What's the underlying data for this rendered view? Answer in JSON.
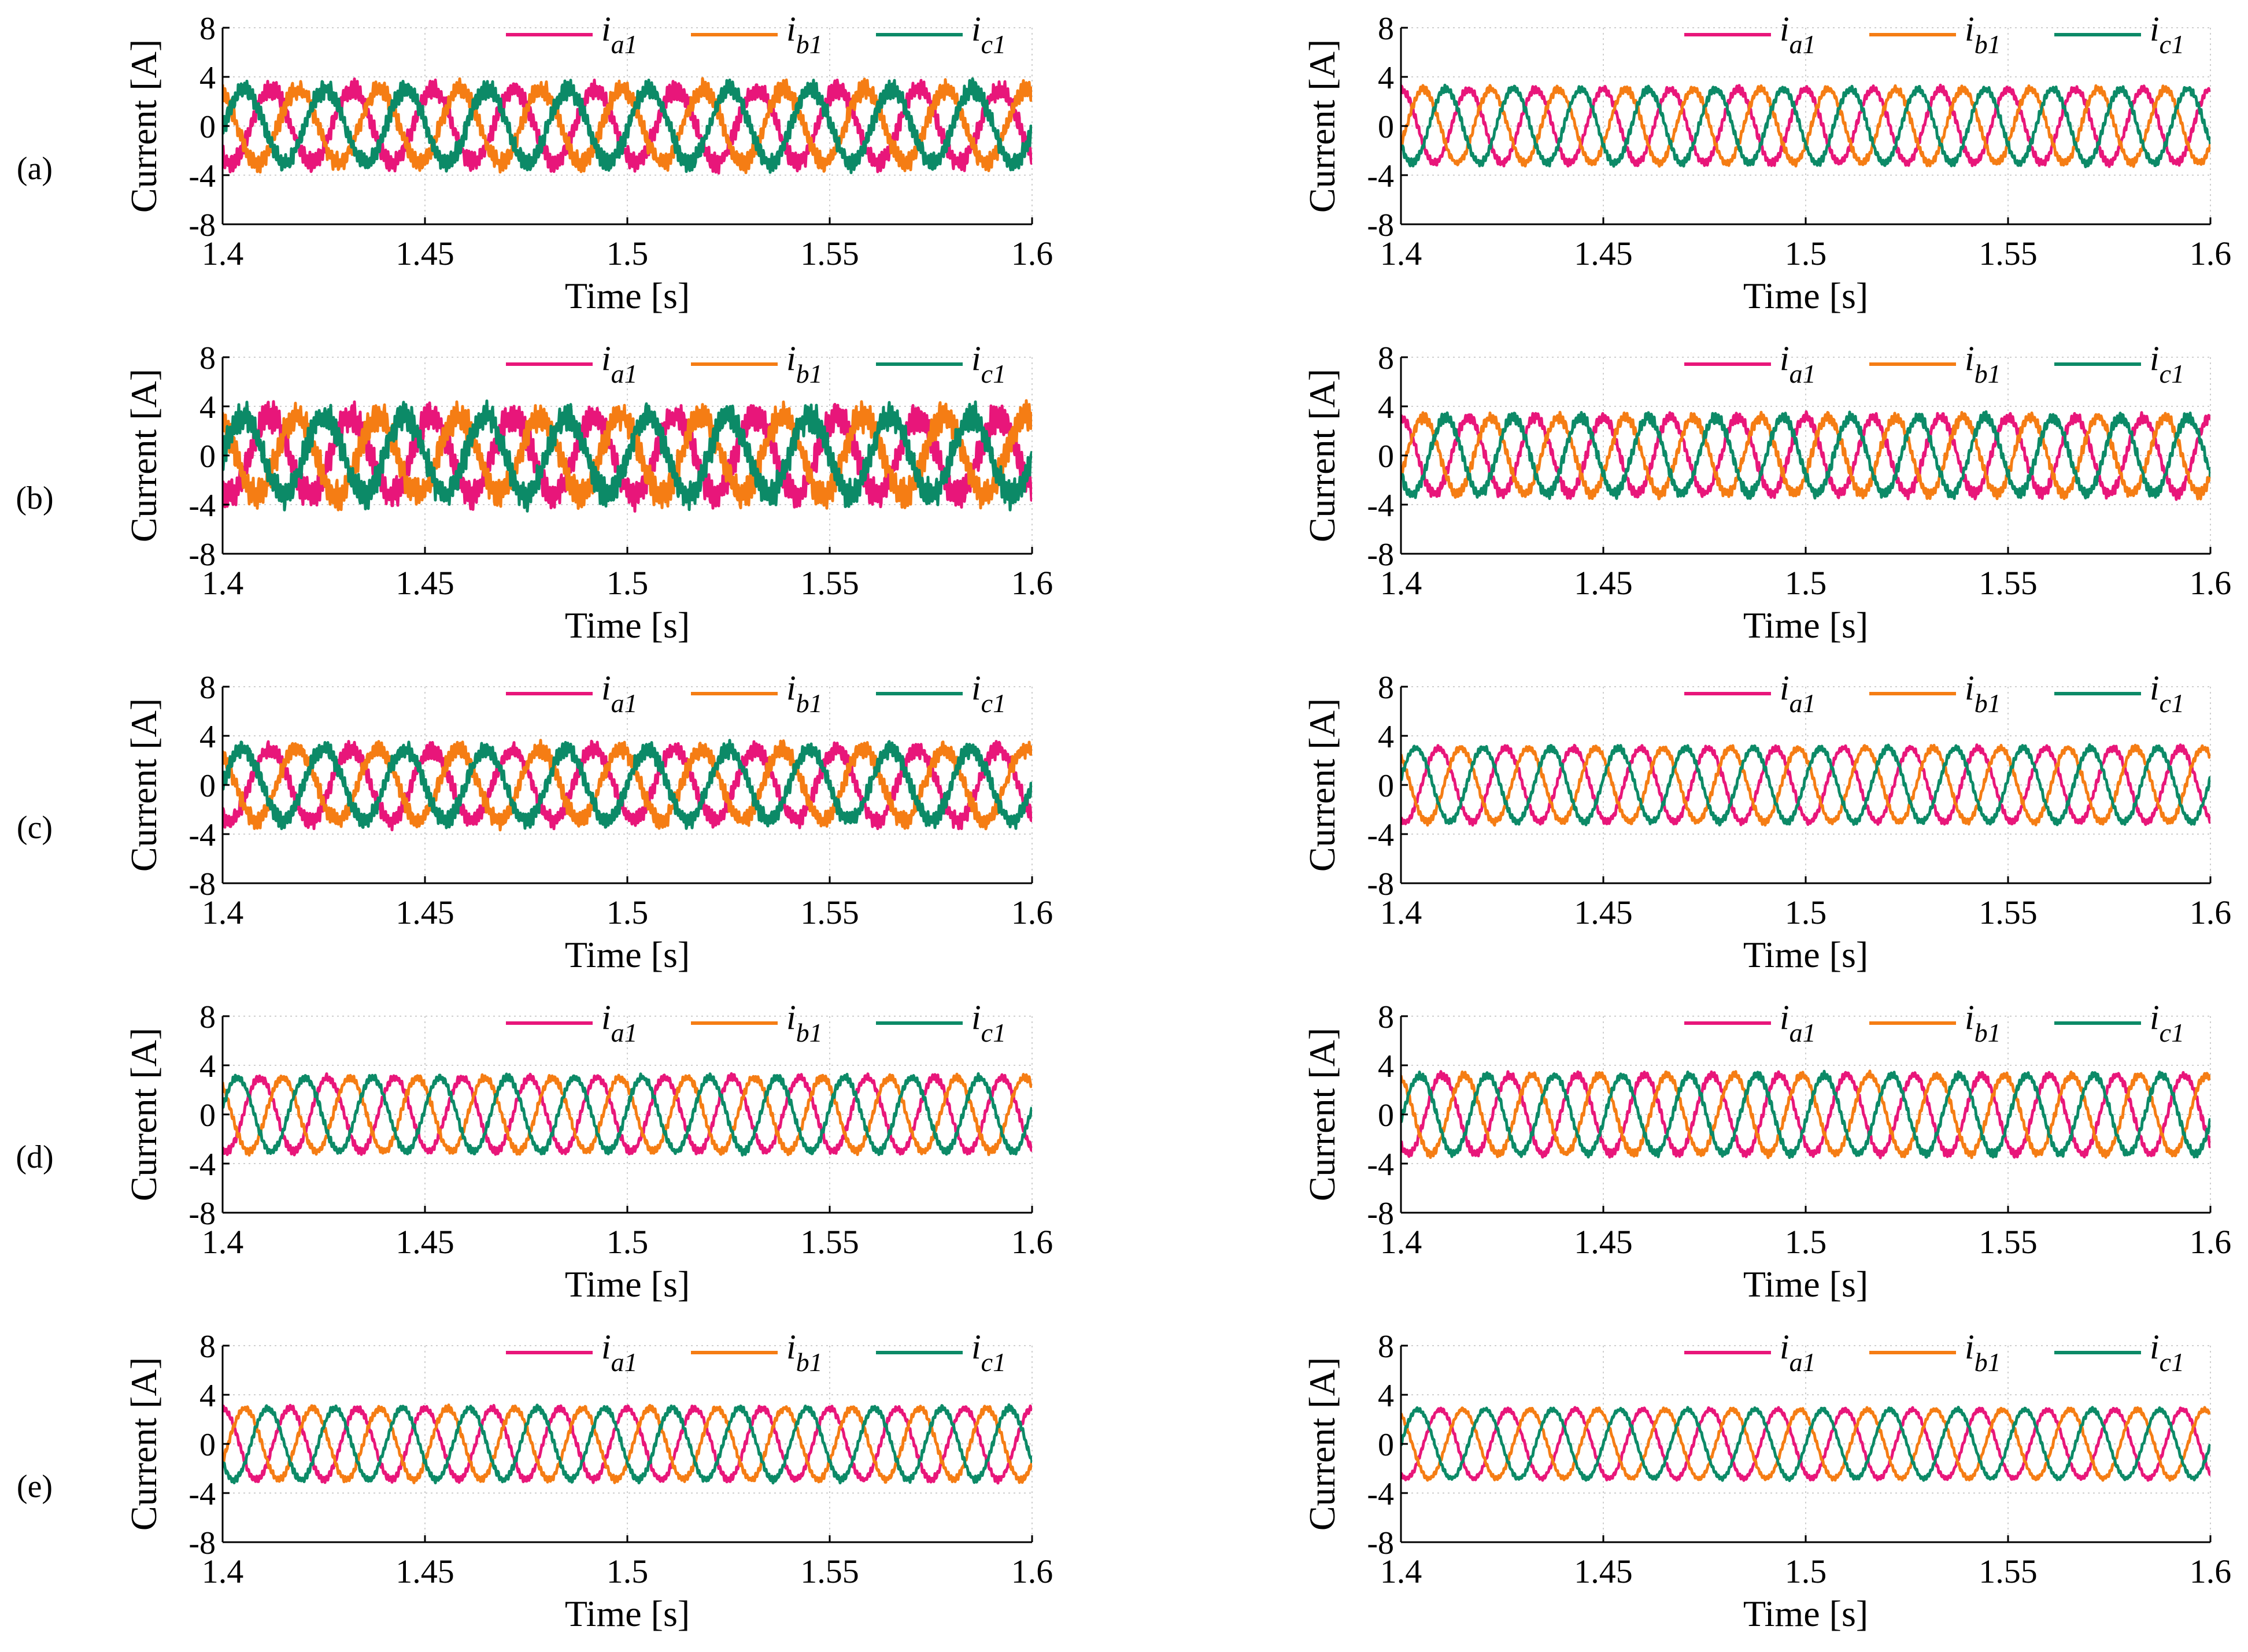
{
  "figure": {
    "row_labels": [
      "(a)",
      "(b)",
      "(c)",
      "(d)",
      "(e)"
    ]
  },
  "colors": {
    "ia1": "#e8167a",
    "ib1": "#f57d14",
    "ic1": "#0c8a67",
    "grid": "#cfcfcf",
    "axis": "#000000"
  },
  "chart_data": [
    {
      "type": "line",
      "panel": "a-left",
      "xlabel": "Time [s]",
      "ylabel": "Current [A]",
      "xlim": [
        1.4,
        1.6
      ],
      "ylim": [
        -8,
        8
      ],
      "xticks": [
        "1.4",
        "1.45",
        "1.5",
        "1.55",
        "1.6"
      ],
      "yticks": [
        "8",
        "4",
        "0",
        "-4",
        "-8"
      ],
      "grid": true,
      "legend": "top-right-horizontal",
      "frequency_hz": 50,
      "amplitude_a": 3.0,
      "ripple_a": 0.9,
      "phase_a_deg_at_1p4": 234,
      "series": [
        {
          "name": "i",
          "sub": "a1",
          "phase_offset_deg": 0
        },
        {
          "name": "i",
          "sub": "b1",
          "phase_offset_deg": -120
        },
        {
          "name": "i",
          "sub": "c1",
          "phase_offset_deg": 120
        }
      ]
    },
    {
      "type": "line",
      "panel": "a-right",
      "xlabel": "Time [s]",
      "ylabel": "Current [A]",
      "xlim": [
        1.4,
        1.6
      ],
      "ylim": [
        -8,
        8
      ],
      "xticks": [
        "1.4",
        "1.45",
        "1.5",
        "1.55",
        "1.6"
      ],
      "yticks": [
        "8",
        "4",
        "0",
        "-4",
        "-8"
      ],
      "grid": true,
      "legend": "top-right-horizontal",
      "frequency_hz": 60,
      "amplitude_a": 3.0,
      "ripple_a": 0.35,
      "phase_a_deg_at_1p4": 90,
      "series": [
        {
          "name": "i",
          "sub": "a1",
          "phase_offset_deg": 0
        },
        {
          "name": "i",
          "sub": "b1",
          "phase_offset_deg": -120
        },
        {
          "name": "i",
          "sub": "c1",
          "phase_offset_deg": 120
        }
      ]
    },
    {
      "type": "line",
      "panel": "b-left",
      "xlabel": "Time [s]",
      "ylabel": "Current [A]",
      "xlim": [
        1.4,
        1.6
      ],
      "ylim": [
        -8,
        8
      ],
      "xticks": [
        "1.4",
        "1.45",
        "1.5",
        "1.55",
        "1.6"
      ],
      "yticks": [
        "8",
        "4",
        "0",
        "-4",
        "-8"
      ],
      "grid": true,
      "legend": "top-right-horizontal",
      "frequency_hz": 50,
      "amplitude_a": 3.2,
      "ripple_a": 1.4,
      "phase_a_deg_at_1p4": 240,
      "series": [
        {
          "name": "i",
          "sub": "a1",
          "phase_offset_deg": 0
        },
        {
          "name": "i",
          "sub": "b1",
          "phase_offset_deg": -120
        },
        {
          "name": "i",
          "sub": "c1",
          "phase_offset_deg": 120
        }
      ]
    },
    {
      "type": "line",
      "panel": "b-right",
      "xlabel": "Time [s]",
      "ylabel": "Current [A]",
      "xlim": [
        1.4,
        1.6
      ],
      "ylim": [
        -8,
        8
      ],
      "xticks": [
        "1.4",
        "1.45",
        "1.5",
        "1.55",
        "1.6"
      ],
      "yticks": [
        "8",
        "4",
        "0",
        "-4",
        "-8"
      ],
      "grid": true,
      "legend": "top-right-horizontal",
      "frequency_hz": 60,
      "amplitude_a": 3.1,
      "ripple_a": 0.5,
      "phase_a_deg_at_1p4": 90,
      "series": [
        {
          "name": "i",
          "sub": "a1",
          "phase_offset_deg": 0
        },
        {
          "name": "i",
          "sub": "b1",
          "phase_offset_deg": -120
        },
        {
          "name": "i",
          "sub": "c1",
          "phase_offset_deg": 120
        }
      ]
    },
    {
      "type": "line",
      "panel": "c-left",
      "xlabel": "Time [s]",
      "ylabel": "Current [A]",
      "xlim": [
        1.4,
        1.6
      ],
      "ylim": [
        -8,
        8
      ],
      "xticks": [
        "1.4",
        "1.45",
        "1.5",
        "1.55",
        "1.6"
      ],
      "yticks": [
        "8",
        "4",
        "0",
        "-4",
        "-8"
      ],
      "grid": true,
      "legend": "top-right-horizontal",
      "frequency_hz": 50,
      "amplitude_a": 2.9,
      "ripple_a": 0.8,
      "phase_a_deg_at_1p4": 240,
      "series": [
        {
          "name": "i",
          "sub": "a1",
          "phase_offset_deg": 0
        },
        {
          "name": "i",
          "sub": "b1",
          "phase_offset_deg": -120
        },
        {
          "name": "i",
          "sub": "c1",
          "phase_offset_deg": 120
        }
      ]
    },
    {
      "type": "line",
      "panel": "c-right",
      "xlabel": "Time [s]",
      "ylabel": "Current [A]",
      "xlim": [
        1.4,
        1.6
      ],
      "ylim": [
        -8,
        8
      ],
      "xticks": [
        "1.4",
        "1.45",
        "1.5",
        "1.55",
        "1.6"
      ],
      "yticks": [
        "8",
        "4",
        "0",
        "-4",
        "-8"
      ],
      "grid": true,
      "legend": "top-right-horizontal",
      "frequency_hz": 60,
      "amplitude_a": 3.0,
      "ripple_a": 0.3,
      "phase_a_deg_at_1p4": 250,
      "series": [
        {
          "name": "i",
          "sub": "a1",
          "phase_offset_deg": 0
        },
        {
          "name": "i",
          "sub": "b1",
          "phase_offset_deg": -120
        },
        {
          "name": "i",
          "sub": "c1",
          "phase_offset_deg": 120
        }
      ]
    },
    {
      "type": "line",
      "panel": "d-left",
      "xlabel": "Time [s]",
      "ylabel": "Current [A]",
      "xlim": [
        1.4,
        1.6
      ],
      "ylim": [
        -8,
        8
      ],
      "xticks": [
        "1.4",
        "1.45",
        "1.5",
        "1.55",
        "1.6"
      ],
      "yticks": [
        "8",
        "4",
        "0",
        "-4",
        "-8"
      ],
      "grid": true,
      "legend": "top-right-horizontal",
      "frequency_hz": 60,
      "amplitude_a": 3.0,
      "ripple_a": 0.35,
      "phase_a_deg_at_1p4": 250,
      "series": [
        {
          "name": "i",
          "sub": "a1",
          "phase_offset_deg": 0
        },
        {
          "name": "i",
          "sub": "b1",
          "phase_offset_deg": -120
        },
        {
          "name": "i",
          "sub": "c1",
          "phase_offset_deg": 120
        }
      ]
    },
    {
      "type": "line",
      "panel": "d-right",
      "xlabel": "Time [s]",
      "ylabel": "Current [A]",
      "xlim": [
        1.4,
        1.6
      ],
      "ylim": [
        -8,
        8
      ],
      "xticks": [
        "1.4",
        "1.45",
        "1.5",
        "1.55",
        "1.6"
      ],
      "yticks": [
        "8",
        "4",
        "0",
        "-4",
        "-8"
      ],
      "grid": true,
      "legend": "top-right-horizontal",
      "frequency_hz": 60,
      "amplitude_a": 3.2,
      "ripple_a": 0.35,
      "phase_a_deg_at_1p4": 230,
      "series": [
        {
          "name": "i",
          "sub": "a1",
          "phase_offset_deg": 0
        },
        {
          "name": "i",
          "sub": "b1",
          "phase_offset_deg": -120
        },
        {
          "name": "i",
          "sub": "c1",
          "phase_offset_deg": 120
        }
      ]
    },
    {
      "type": "line",
      "panel": "e-left",
      "xlabel": "Time [s]",
      "ylabel": "Current [A]",
      "xlim": [
        1.4,
        1.6
      ],
      "ylim": [
        -8,
        8
      ],
      "xticks": [
        "1.4",
        "1.45",
        "1.5",
        "1.55",
        "1.6"
      ],
      "yticks": [
        "8",
        "4",
        "0",
        "-4",
        "-8"
      ],
      "grid": true,
      "legend": "top-right-horizontal",
      "frequency_hz": 60,
      "amplitude_a": 2.9,
      "ripple_a": 0.3,
      "phase_a_deg_at_1p4": 90,
      "series": [
        {
          "name": "i",
          "sub": "a1",
          "phase_offset_deg": 0
        },
        {
          "name": "i",
          "sub": "b1",
          "phase_offset_deg": -120
        },
        {
          "name": "i",
          "sub": "c1",
          "phase_offset_deg": 120
        }
      ]
    },
    {
      "type": "line",
      "panel": "e-right",
      "xlabel": "Time [s]",
      "ylabel": "Current [A]",
      "xlim": [
        1.4,
        1.6
      ],
      "ylim": [
        -8,
        8
      ],
      "xticks": [
        "1.4",
        "1.45",
        "1.5",
        "1.55",
        "1.6"
      ],
      "yticks": [
        "8",
        "4",
        "0",
        "-4",
        "-8"
      ],
      "grid": true,
      "legend": "top-right-horizontal",
      "frequency_hz": 60,
      "amplitude_a": 2.8,
      "ripple_a": 0.2,
      "phase_a_deg_at_1p4": 240,
      "series": [
        {
          "name": "i",
          "sub": "a1",
          "phase_offset_deg": 0
        },
        {
          "name": "i",
          "sub": "b1",
          "phase_offset_deg": -120
        },
        {
          "name": "i",
          "sub": "c1",
          "phase_offset_deg": 120
        }
      ]
    }
  ]
}
